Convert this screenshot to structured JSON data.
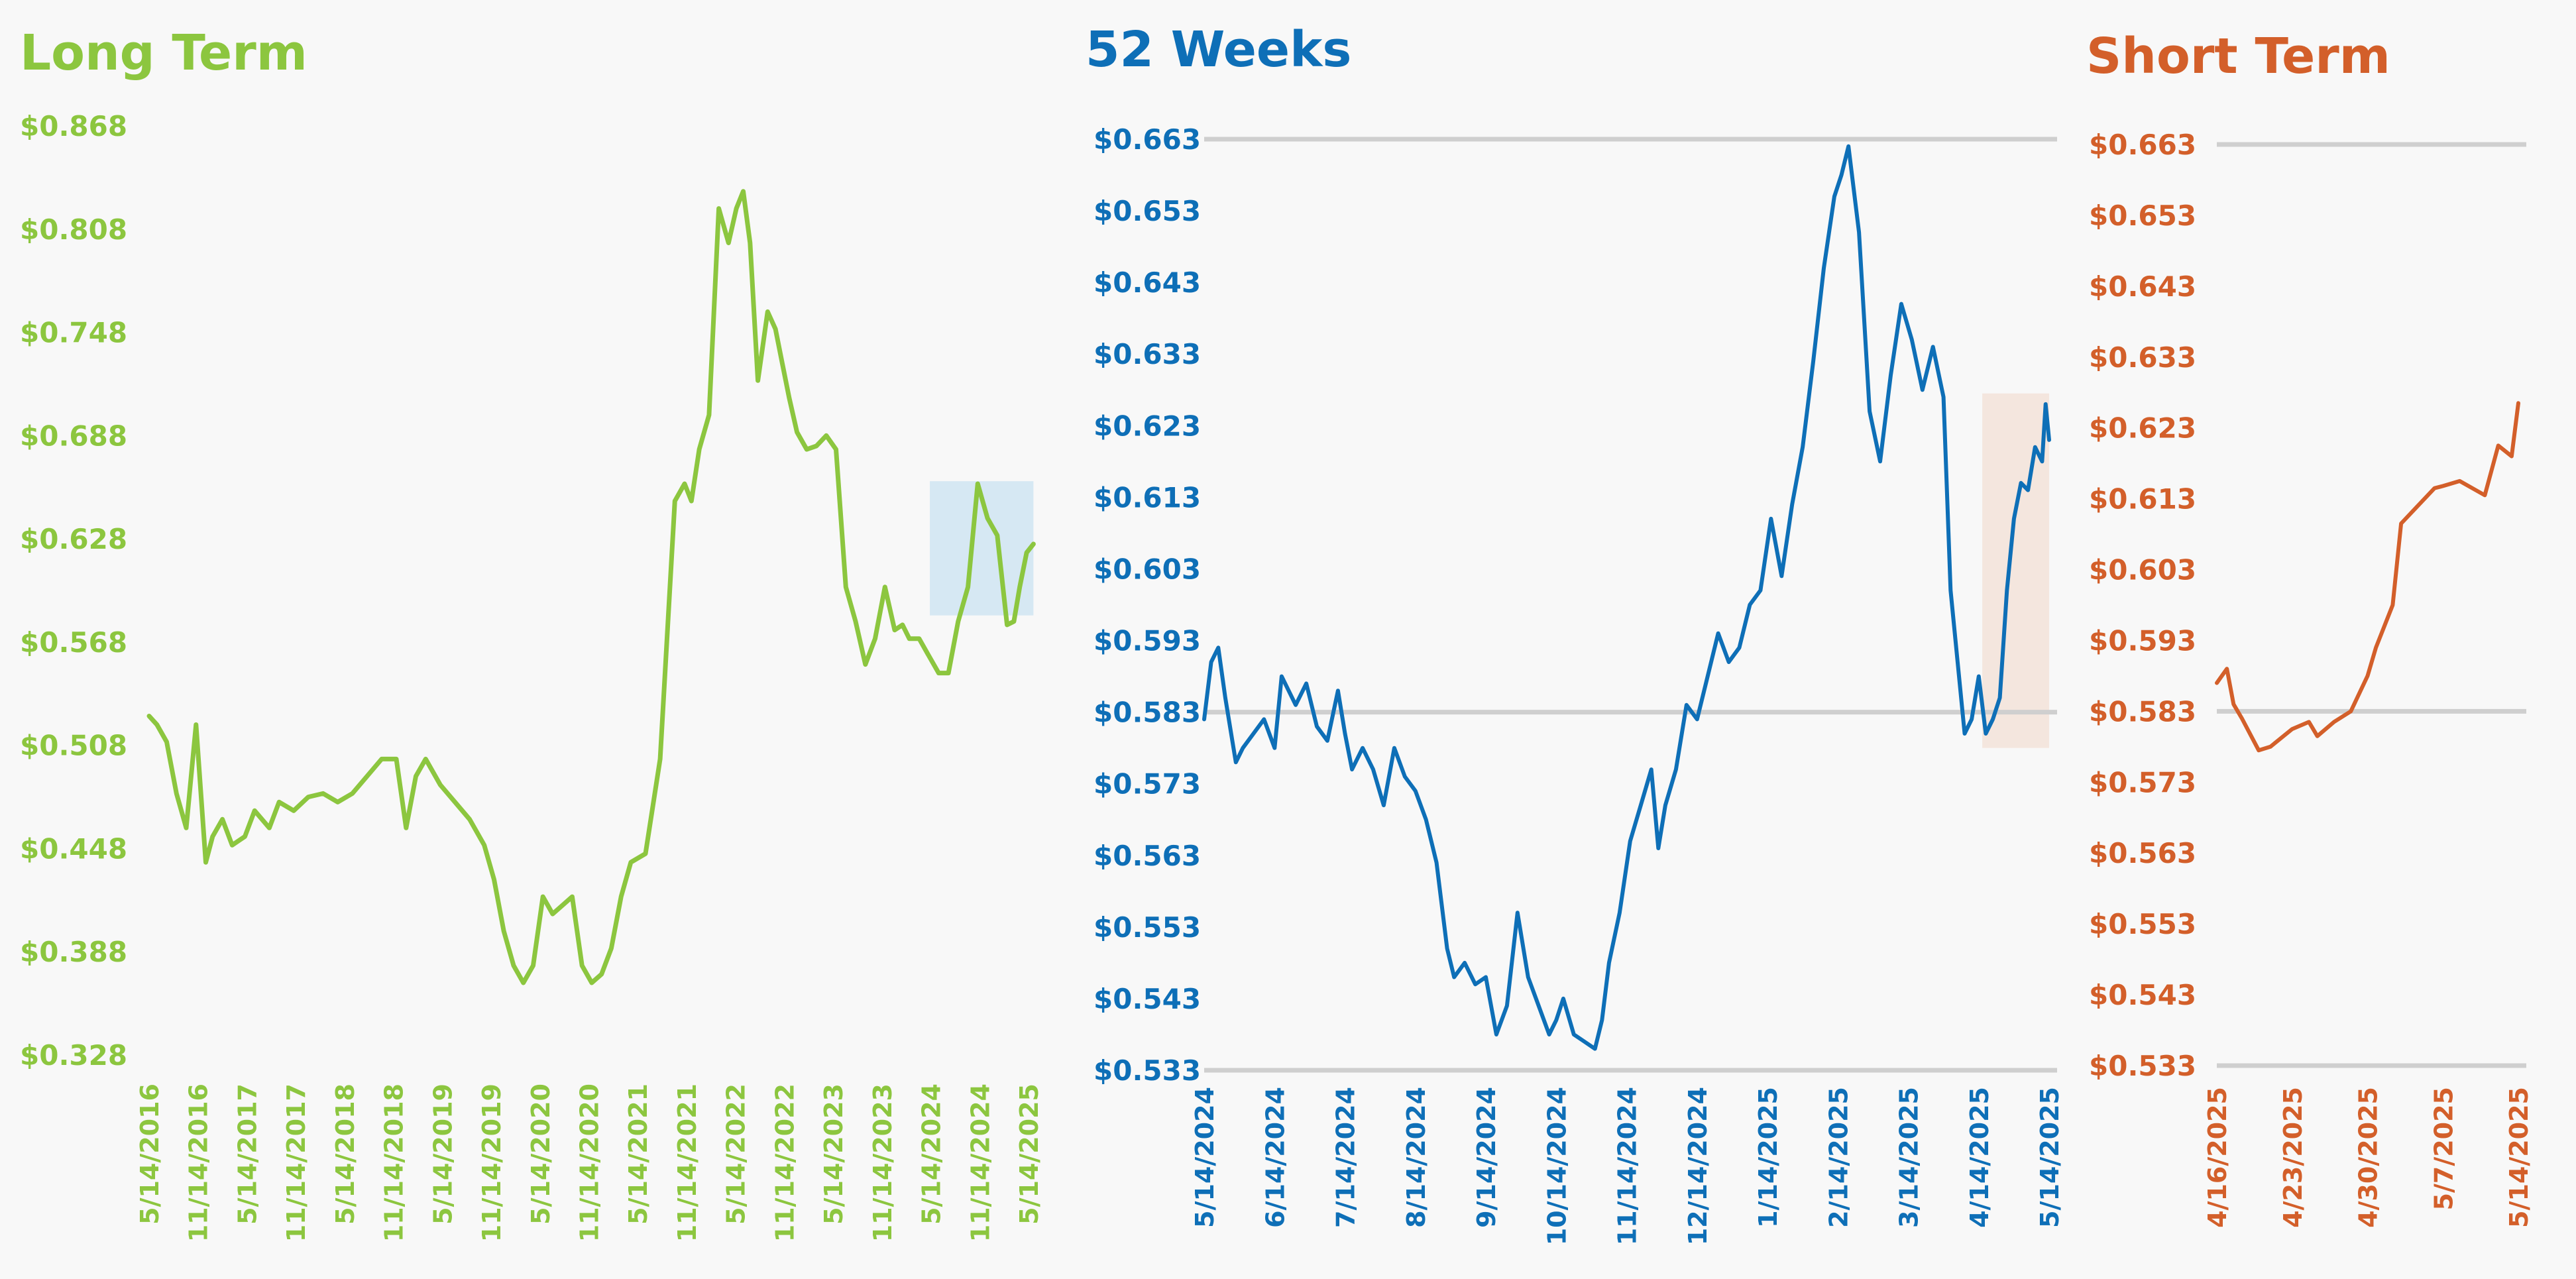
{
  "chart_data": [
    {
      "type": "line",
      "title": "Long Term",
      "color": "#8cc63f",
      "highlight_color": "#d6e8f3",
      "y_ticks": [
        "$0.868",
        "$0.808",
        "$0.748",
        "$0.688",
        "$0.628",
        "$0.568",
        "$0.508",
        "$0.448",
        "$0.388",
        "$0.328"
      ],
      "x_ticks": [
        "5/14/2016",
        "11/14/2016",
        "5/14/2017",
        "11/14/2017",
        "5/14/2018",
        "11/14/2018",
        "5/14/2019",
        "11/14/2019",
        "5/14/2020",
        "11/14/2020",
        "5/14/2021",
        "11/14/2021",
        "5/14/2022",
        "11/14/2022",
        "5/14/2023",
        "11/14/2023",
        "5/14/2024",
        "11/14/2024",
        "5/14/2025"
      ],
      "ylim": [
        0.328,
        0.868
      ],
      "grid": false,
      "highlight": {
        "x": [
          2024.36,
          2025.42
        ],
        "y": [
          0.5835,
          0.6615
        ]
      },
      "series": [
        {
          "x": [
            2016.37,
            2016.45,
            2016.55,
            2016.65,
            2016.75,
            2016.85,
            2016.95,
            2017.02,
            2017.12,
            2017.22,
            2017.35,
            2017.45,
            2017.6,
            2017.7,
            2017.85,
            2018.0,
            2018.15,
            2018.3,
            2018.45,
            2018.6,
            2018.75,
            2018.9,
            2019.0,
            2019.1,
            2019.2,
            2019.35,
            2019.5,
            2019.65,
            2019.8,
            2019.9,
            2020.0,
            2020.1,
            2020.2,
            2020.3,
            2020.4,
            2020.5,
            2020.6,
            2020.7,
            2020.8,
            2020.9,
            2021.0,
            2021.1,
            2021.2,
            2021.3,
            2021.45,
            2021.6,
            2021.75,
            2021.85,
            2021.92,
            2022.0,
            2022.1,
            2022.2,
            2022.3,
            2022.38,
            2022.45,
            2022.52,
            2022.6,
            2022.7,
            2022.78,
            2022.85,
            2022.92,
            2023.0,
            2023.1,
            2023.2,
            2023.3,
            2023.4,
            2023.5,
            2023.6,
            2023.7,
            2023.8,
            2023.9,
            2024.0,
            2024.08,
            2024.15,
            2024.25,
            2024.35,
            2024.45,
            2024.55,
            2024.65,
            2024.75,
            2024.85,
            2024.95,
            2025.05,
            2025.15,
            2025.22,
            2025.28,
            2025.35,
            2025.42
          ],
          "y": [
            0.525,
            0.52,
            0.51,
            0.48,
            0.46,
            0.52,
            0.44,
            0.455,
            0.465,
            0.45,
            0.455,
            0.47,
            0.46,
            0.475,
            0.47,
            0.478,
            0.48,
            0.475,
            0.48,
            0.49,
            0.5,
            0.5,
            0.46,
            0.49,
            0.5,
            0.485,
            0.475,
            0.465,
            0.45,
            0.43,
            0.4,
            0.38,
            0.37,
            0.38,
            0.42,
            0.41,
            0.415,
            0.42,
            0.38,
            0.37,
            0.375,
            0.39,
            0.42,
            0.44,
            0.445,
            0.5,
            0.65,
            0.66,
            0.65,
            0.68,
            0.7,
            0.82,
            0.8,
            0.82,
            0.83,
            0.8,
            0.72,
            0.76,
            0.75,
            0.73,
            0.71,
            0.69,
            0.68,
            0.682,
            0.688,
            0.68,
            0.6,
            0.58,
            0.555,
            0.57,
            0.6,
            0.575,
            0.578,
            0.57,
            0.57,
            0.56,
            0.55,
            0.55,
            0.58,
            0.6,
            0.66,
            0.64,
            0.63,
            0.578,
            0.58,
            0.6,
            0.62,
            0.625
          ]
        }
      ]
    },
    {
      "type": "line",
      "title": "52 Weeks",
      "color": "#0e6fb7",
      "highlight_color": "#f4e6de",
      "y_ticks": [
        "$0.663",
        "$0.653",
        "$0.643",
        "$0.633",
        "$0.623",
        "$0.613",
        "$0.603",
        "$0.593",
        "$0.583",
        "$0.573",
        "$0.563",
        "$0.553",
        "$0.543",
        "$0.533"
      ],
      "x_ticks": [
        "5/14/2024",
        "6/14/2024",
        "7/14/2024",
        "8/14/2024",
        "9/14/2024",
        "10/14/2024",
        "11/14/2024",
        "12/14/2024",
        "1/14/2025",
        "2/14/2025",
        "3/14/2025",
        "4/14/2025",
        "5/14/2025"
      ],
      "ylim": [
        0.533,
        0.663
      ],
      "grid": true,
      "highlight": {
        "x": [
          11.05,
          12.0
        ],
        "y": [
          0.578,
          0.6275
        ]
      },
      "series": [
        {
          "x": [
            0,
            0.1,
            0.2,
            0.3,
            0.45,
            0.55,
            0.7,
            0.85,
            1.0,
            1.1,
            1.3,
            1.45,
            1.6,
            1.75,
            1.9,
            2.0,
            2.1,
            2.25,
            2.4,
            2.55,
            2.7,
            2.85,
            3.0,
            3.15,
            3.3,
            3.45,
            3.55,
            3.7,
            3.85,
            4.0,
            4.15,
            4.3,
            4.45,
            4.6,
            4.75,
            4.9,
            5.0,
            5.1,
            5.25,
            5.4,
            5.55,
            5.65,
            5.75,
            5.9,
            6.05,
            6.2,
            6.35,
            6.45,
            6.55,
            6.7,
            6.85,
            7.0,
            7.15,
            7.3,
            7.45,
            7.6,
            7.75,
            7.9,
            8.05,
            8.2,
            8.35,
            8.5,
            8.65,
            8.8,
            8.95,
            9.05,
            9.15,
            9.3,
            9.45,
            9.6,
            9.75,
            9.9,
            10.05,
            10.2,
            10.35,
            10.5,
            10.6,
            10.7,
            10.8,
            10.9,
            11.0,
            11.1,
            11.2,
            11.3,
            11.4,
            11.5,
            11.6,
            11.7,
            11.8,
            11.9,
            11.95,
            12.0
          ],
          "y": [
            0.582,
            0.59,
            0.592,
            0.585,
            0.576,
            0.578,
            0.58,
            0.582,
            0.578,
            0.588,
            0.584,
            0.587,
            0.581,
            0.579,
            0.586,
            0.58,
            0.575,
            0.578,
            0.575,
            0.57,
            0.578,
            0.574,
            0.572,
            0.568,
            0.562,
            0.55,
            0.546,
            0.548,
            0.545,
            0.546,
            0.538,
            0.542,
            0.555,
            0.546,
            0.542,
            0.538,
            0.54,
            0.543,
            0.538,
            0.537,
            0.536,
            0.54,
            0.548,
            0.555,
            0.565,
            0.57,
            0.575,
            0.564,
            0.57,
            0.575,
            0.584,
            0.582,
            0.588,
            0.594,
            0.59,
            0.592,
            0.598,
            0.6,
            0.61,
            0.602,
            0.612,
            0.62,
            0.632,
            0.645,
            0.655,
            0.658,
            0.662,
            0.65,
            0.625,
            0.618,
            0.63,
            0.64,
            0.635,
            0.628,
            0.634,
            0.627,
            0.6,
            0.59,
            0.58,
            0.582,
            0.588,
            0.58,
            0.582,
            0.585,
            0.6,
            0.61,
            0.615,
            0.614,
            0.62,
            0.618,
            0.626,
            0.621
          ]
        }
      ]
    },
    {
      "type": "line",
      "title": "Short Term",
      "color": "#d35f2a",
      "highlight_color": "",
      "y_ticks": [
        "$0.663",
        "$0.653",
        "$0.643",
        "$0.633",
        "$0.623",
        "$0.613",
        "$0.603",
        "$0.593",
        "$0.583",
        "$0.573",
        "$0.563",
        "$0.553",
        "$0.543",
        "$0.533"
      ],
      "x_ticks": [
        "4/16/2025",
        "4/23/2025",
        "4/30/2025",
        "5/7/2025",
        "5/14/2025"
      ],
      "ylim": [
        0.533,
        0.663
      ],
      "grid": true,
      "highlight": null,
      "series": [
        {
          "x": [
            0,
            0.6,
            1.0,
            1.5,
            2.5,
            3.2,
            4.5,
            5.5,
            6.0,
            7.0,
            8.0,
            9.0,
            9.5,
            10.5,
            11.0,
            12.0,
            13.0,
            13.5,
            14.5,
            16.0,
            16.8,
            17.6,
            18.0
          ],
          "y": [
            0.587,
            0.589,
            0.584,
            0.582,
            0.5775,
            0.578,
            0.5805,
            0.5815,
            0.5795,
            0.5815,
            0.583,
            0.588,
            0.592,
            0.598,
            0.6095,
            0.612,
            0.6145,
            0.6148,
            0.6155,
            0.6135,
            0.6205,
            0.619,
            0.6265
          ]
        }
      ]
    }
  ]
}
